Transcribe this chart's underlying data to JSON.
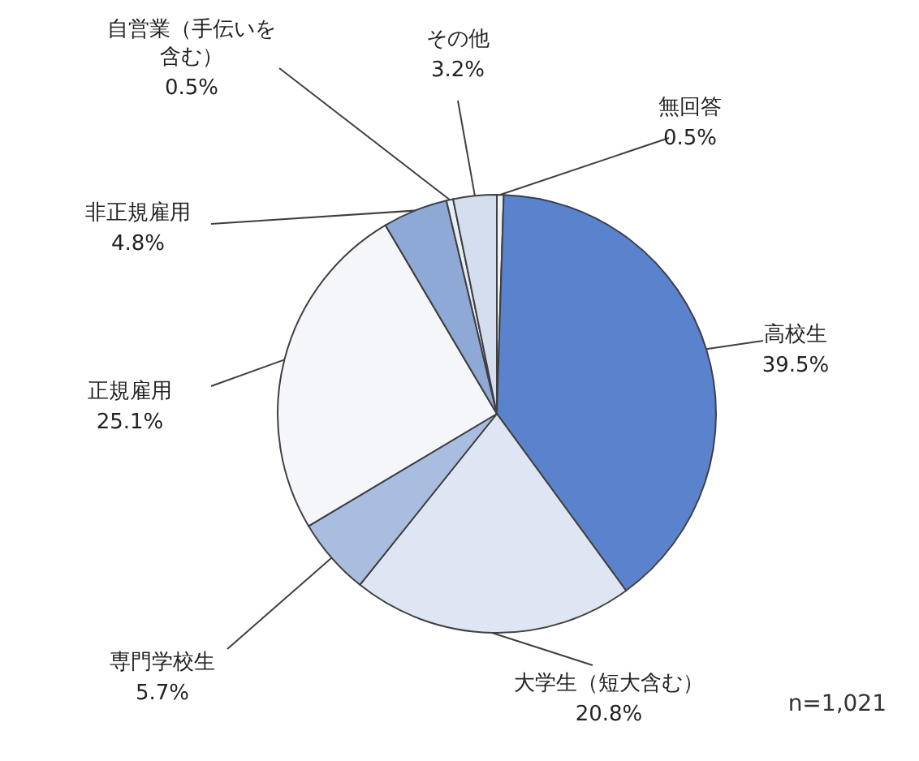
{
  "chart_data": {
    "type": "pie",
    "categories": [
      "無回答",
      "高校生",
      "大学生（短大含む）",
      "専門学校生",
      "正規雇用",
      "非正規雇用",
      "自営業（手伝いを含む）",
      "その他"
    ],
    "values": [
      0.5,
      39.5,
      20.8,
      5.7,
      25.1,
      4.8,
      0.5,
      3.2
    ],
    "value_labels": [
      "0.5%",
      "39.5%",
      "20.8%",
      "5.7%",
      "25.1%",
      "4.8%",
      "0.5%",
      "3.2%"
    ],
    "colors": [
      "#eef2f8",
      "#5b82cc",
      "#dfe6f3",
      "#a9bde0",
      "#f4f6fa",
      "#8fa9d6",
      "#e8edf6",
      "#d5deef"
    ],
    "annotations": [
      "n=1,021"
    ]
  }
}
